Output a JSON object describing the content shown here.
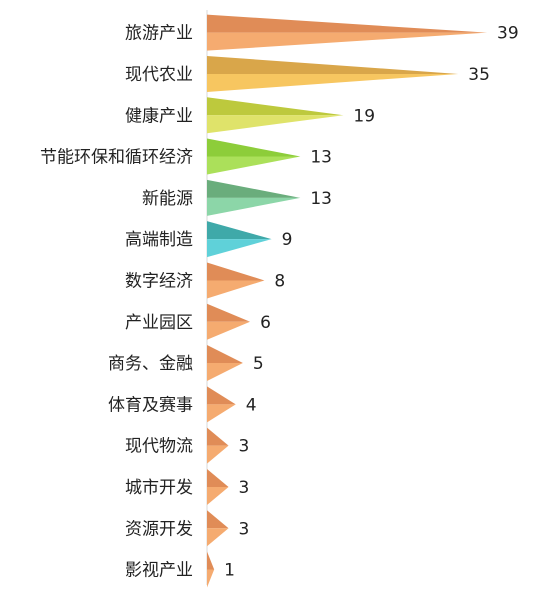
{
  "chart_data": {
    "type": "bar",
    "orientation": "horizontal",
    "bar_style": "triangular",
    "categories": [
      "旅游产业",
      "现代农业",
      "健康产业",
      "节能环保和循环经济",
      "新能源",
      "高端制造",
      "数字经济",
      "产业园区",
      "商务、金融",
      "体育及赛事",
      "现代物流",
      "城市开发",
      "资源开发",
      "影视产业"
    ],
    "values": [
      39,
      35,
      19,
      13,
      13,
      9,
      8,
      6,
      5,
      4,
      3,
      3,
      3,
      1
    ],
    "value_labels": [
      "39",
      "35",
      "19",
      "13",
      "13",
      "9",
      "8",
      "6",
      "5",
      "4",
      "3",
      "3",
      "3",
      "1"
    ],
    "colors": [
      [
        "#e08c57",
        "#f5ab70"
      ],
      [
        "#d9a64a",
        "#f7c660"
      ],
      [
        "#bdc93d",
        "#dfe36a"
      ],
      [
        "#8dcd3a",
        "#abe05a"
      ],
      [
        "#6aad7c",
        "#8cd6a8"
      ],
      [
        "#3fa9a9",
        "#5fd1d9"
      ],
      [
        "#e08c57",
        "#f5ab70"
      ],
      [
        "#e08c57",
        "#f5ab70"
      ],
      [
        "#e08c57",
        "#f5ab70"
      ],
      [
        "#e08c57",
        "#f5ab70"
      ],
      [
        "#e08c57",
        "#f5ab70"
      ],
      [
        "#e08c57",
        "#f5ab70"
      ],
      [
        "#e08c57",
        "#f5ab70"
      ],
      [
        "#e08c57",
        "#f5ab70"
      ]
    ],
    "xlim": [
      0,
      39
    ],
    "grid": false,
    "legend": "none",
    "title": "",
    "xlabel": "",
    "ylabel": ""
  }
}
